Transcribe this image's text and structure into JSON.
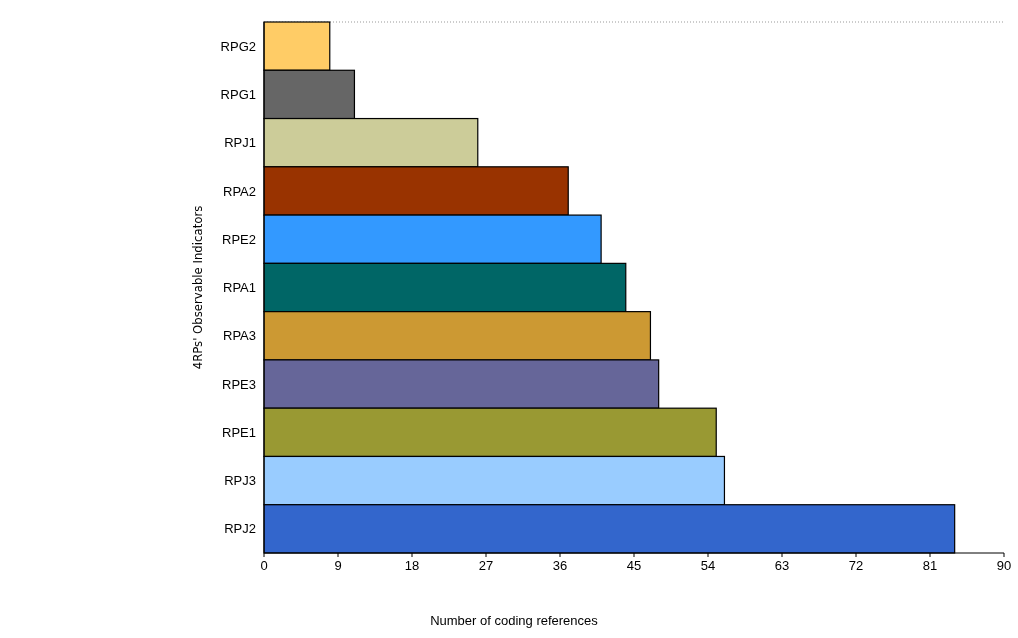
{
  "chart_data": {
    "type": "bar",
    "orientation": "horizontal",
    "xlabel": "Number of coding references",
    "ylabel": "4RPs' Observable Indicators",
    "categories": [
      "RPG2",
      "RPG1",
      "RPJ1",
      "RPA2",
      "RPE2",
      "RPA1",
      "RPA3",
      "RPE3",
      "RPE1",
      "RPJ3",
      "RPJ2"
    ],
    "values": [
      8,
      11,
      26,
      37,
      41,
      44,
      47,
      48,
      55,
      56,
      84
    ],
    "colors": [
      "#ffcc66",
      "#666666",
      "#cccc99",
      "#993300",
      "#3399ff",
      "#006666",
      "#cc9933",
      "#666699",
      "#999933",
      "#99ccff",
      "#3366cc"
    ],
    "xlim": [
      0,
      90
    ],
    "xticks": [
      0,
      9,
      18,
      27,
      36,
      45,
      54,
      63,
      72,
      81,
      90
    ]
  }
}
